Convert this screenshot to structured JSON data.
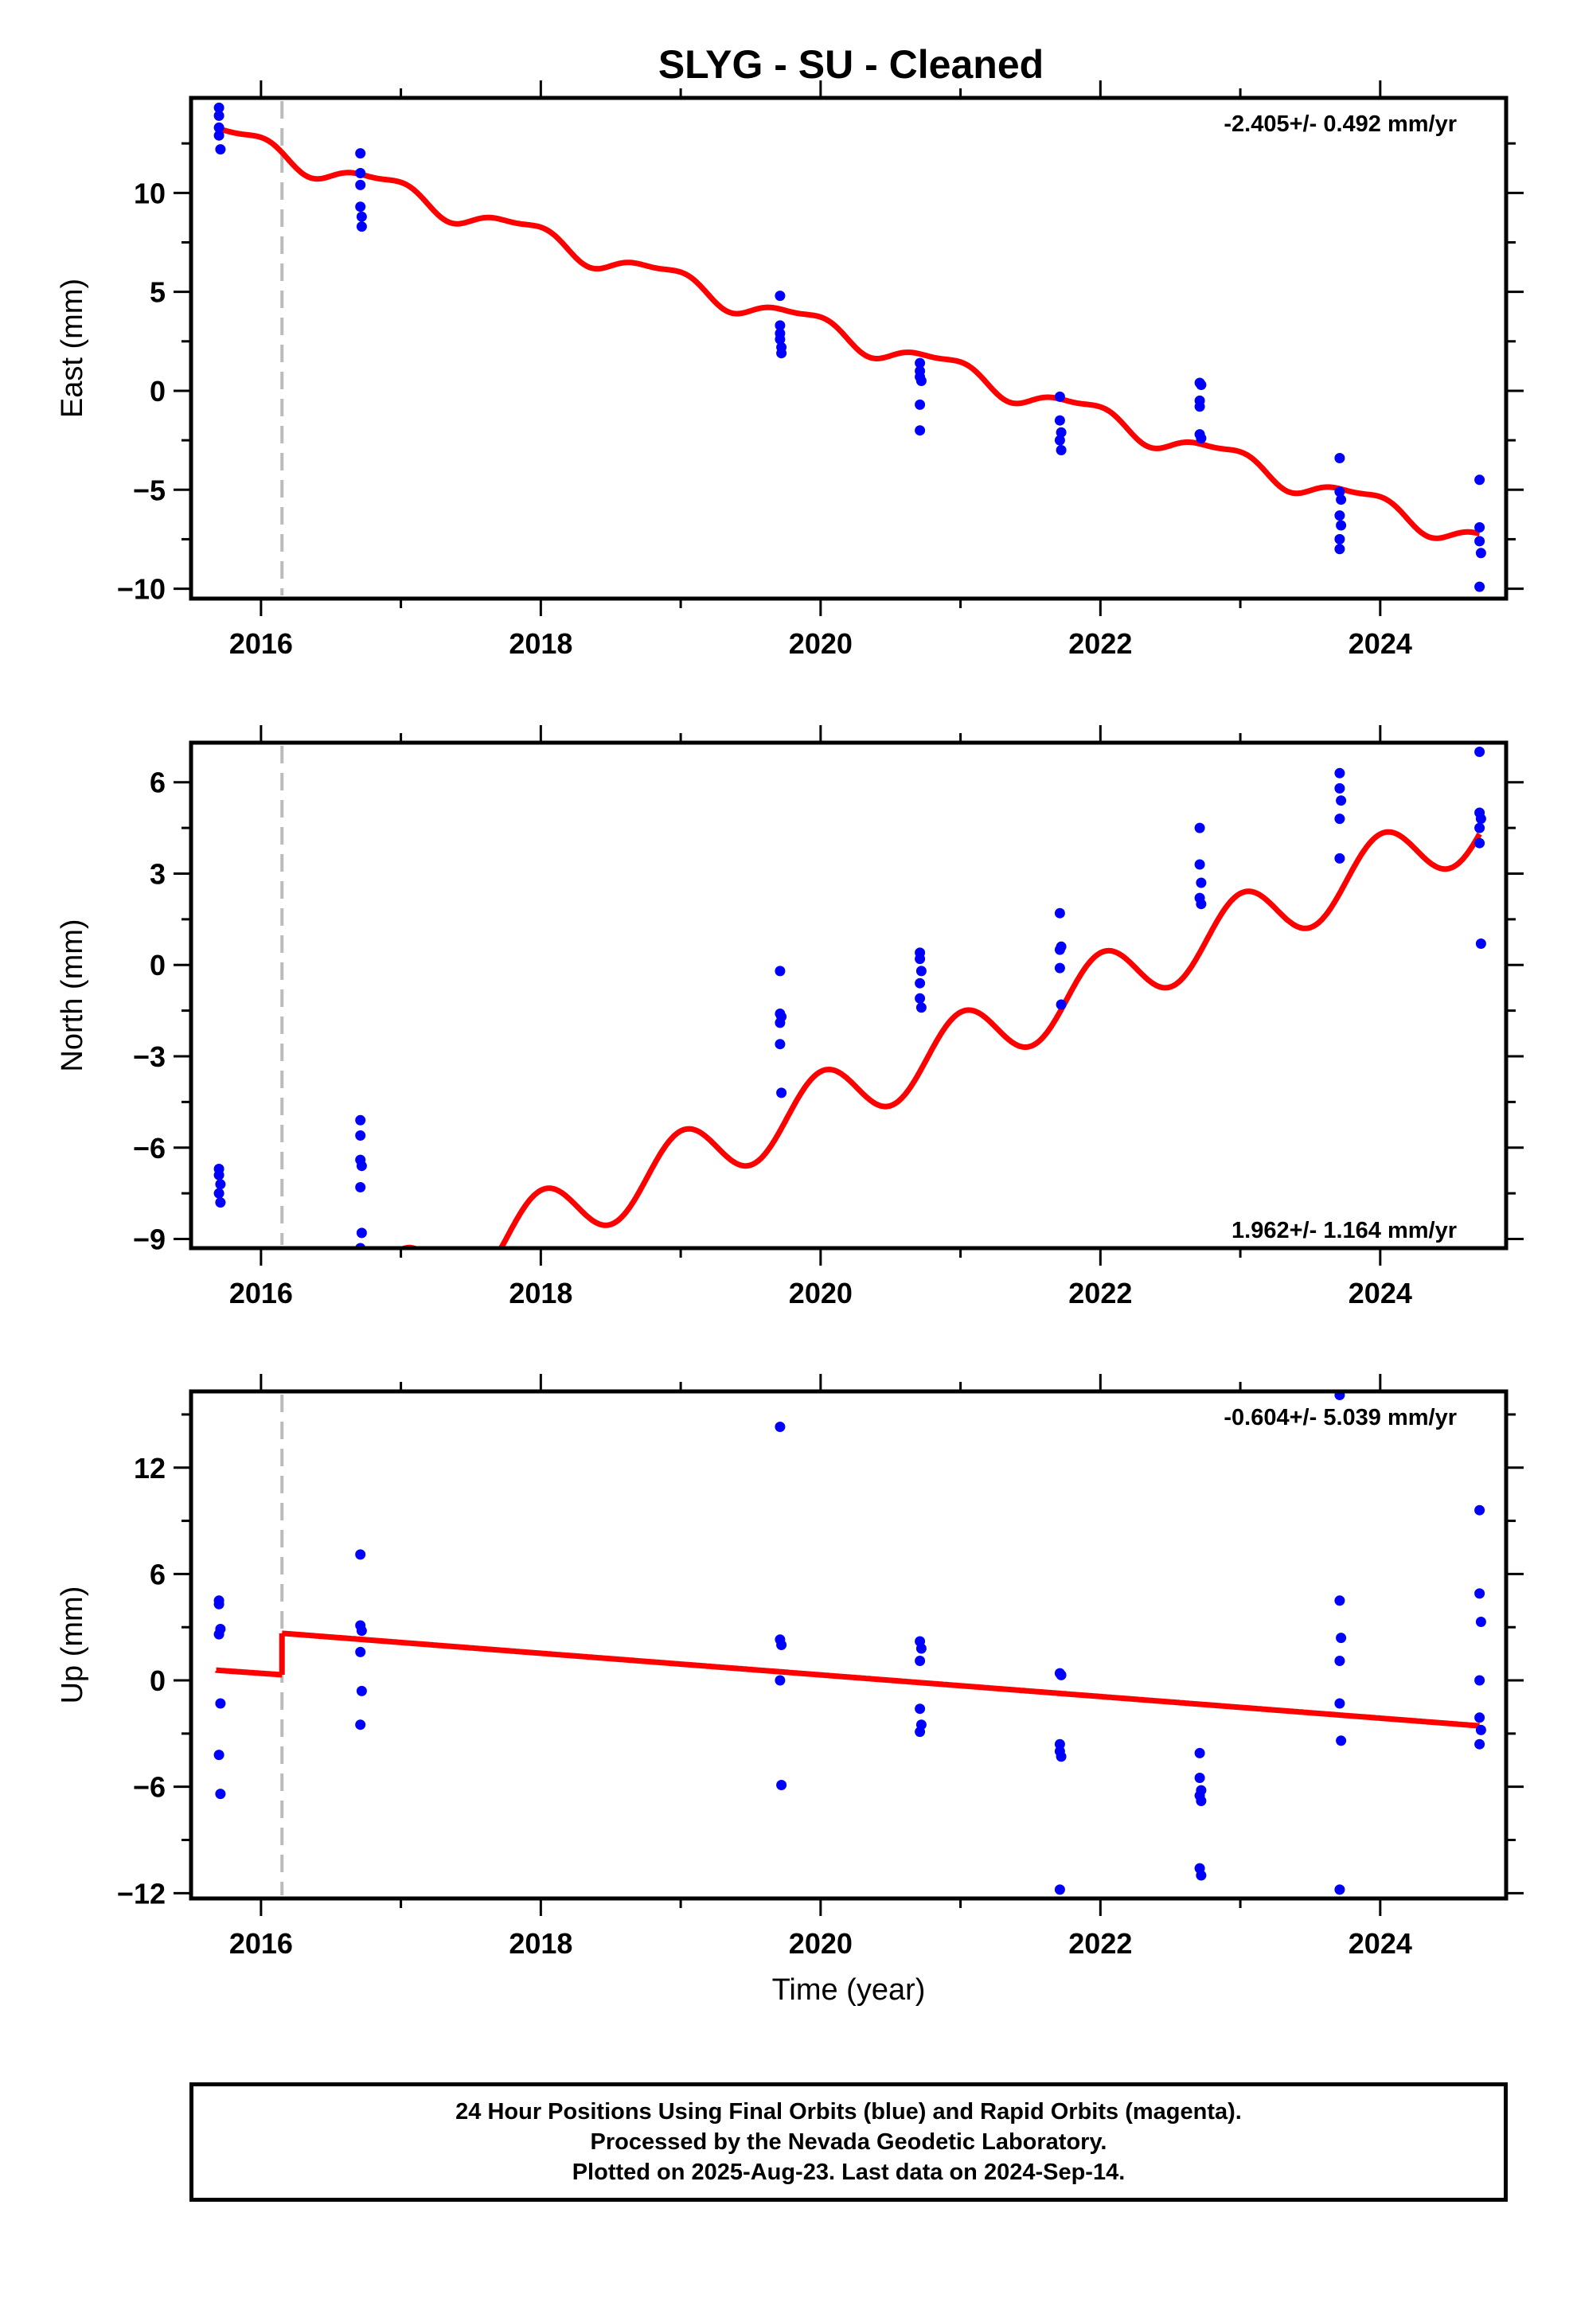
{
  "title": "SLYG  - SU - Cleaned",
  "colors": {
    "final_orbits": "#0000ff",
    "model": "#ff0000",
    "equipment_change_line": "#bbbbbb",
    "frame": "#000000"
  },
  "chart_data": [
    {
      "type": "scatter",
      "component": "east",
      "ylabel": "East (mm)",
      "xlabel": "",
      "xlim": [
        2015.5,
        2024.9
      ],
      "ylim": [
        -10.5,
        14.8
      ],
      "xticks": [
        2016,
        2018,
        2020,
        2022,
        2024
      ],
      "xtick_labels": [
        "2016",
        "2018",
        "2020",
        "2022",
        "2024"
      ],
      "yticks": [
        -10,
        -5,
        0,
        5,
        10
      ],
      "ytick_labels": [
        "−10",
        "−5",
        "0",
        "5",
        "10"
      ],
      "rate_text": "-2.405+/- 0.492 mm/yr",
      "rate_position": "top-right",
      "equipment_change_epoch": 2016.15,
      "model": {
        "segments": [
          {
            "x0": 2015.68,
            "x1": 2024.71,
            "intercept": 12.3,
            "rate": -2.27,
            "annual_amplitude": 0.55,
            "annual_phase": 2.3,
            "semiannual_amplitude": 0.2,
            "semiannual_phase": 0.5
          }
        ]
      },
      "points": [
        [
          2015.7,
          14.3
        ],
        [
          2015.7,
          13.9
        ],
        [
          2015.7,
          13.3
        ],
        [
          2015.7,
          12.9
        ],
        [
          2015.71,
          12.2
        ],
        [
          2016.71,
          12.0
        ],
        [
          2016.71,
          11.0
        ],
        [
          2016.71,
          10.4
        ],
        [
          2016.71,
          9.3
        ],
        [
          2016.72,
          8.8
        ],
        [
          2016.72,
          8.3
        ],
        [
          2019.71,
          4.8
        ],
        [
          2019.71,
          3.3
        ],
        [
          2019.71,
          2.9
        ],
        [
          2019.71,
          2.6
        ],
        [
          2019.72,
          2.2
        ],
        [
          2019.72,
          1.9
        ],
        [
          2020.71,
          1.4
        ],
        [
          2020.71,
          1.0
        ],
        [
          2020.71,
          0.7
        ],
        [
          2020.72,
          0.5
        ],
        [
          2020.71,
          -0.7
        ],
        [
          2020.71,
          -2.0
        ],
        [
          2021.71,
          -0.3
        ],
        [
          2021.71,
          -1.5
        ],
        [
          2021.72,
          -2.1
        ],
        [
          2021.71,
          -2.5
        ],
        [
          2021.72,
          -3.0
        ],
        [
          2022.71,
          0.4
        ],
        [
          2022.72,
          0.3
        ],
        [
          2022.71,
          -0.5
        ],
        [
          2022.71,
          -0.8
        ],
        [
          2022.71,
          -2.2
        ],
        [
          2022.72,
          -2.4
        ],
        [
          2023.71,
          -3.4
        ],
        [
          2023.71,
          -5.1
        ],
        [
          2023.72,
          -5.5
        ],
        [
          2023.71,
          -6.3
        ],
        [
          2023.72,
          -6.8
        ],
        [
          2023.71,
          -7.5
        ],
        [
          2023.71,
          -8.0
        ],
        [
          2024.71,
          -4.5
        ],
        [
          2024.71,
          -6.9
        ],
        [
          2024.71,
          -7.6
        ],
        [
          2024.72,
          -8.2
        ],
        [
          2024.71,
          -9.9
        ]
      ]
    },
    {
      "type": "scatter",
      "component": "north",
      "ylabel": "North (mm)",
      "xlabel": "",
      "xlim": [
        2015.5,
        2024.9
      ],
      "ylim": [
        -9.3,
        7.3
      ],
      "xticks": [
        2016,
        2018,
        2020,
        2022,
        2024
      ],
      "xtick_labels": [
        "2016",
        "2018",
        "2020",
        "2022",
        "2024"
      ],
      "yticks": [
        -9,
        -6,
        -3,
        0,
        3,
        6
      ],
      "ytick_labels": [
        "−9",
        "−6",
        "−3",
        "0",
        "3",
        "6"
      ],
      "rate_text": "1.962+/- 1.164 mm/yr",
      "rate_position": "bottom-right",
      "equipment_change_epoch": 2016.15,
      "model": {
        "segments": [
          {
            "x0": 2015.68,
            "x1": 2016.15,
            "intercept": -11.2,
            "rate": 1.95,
            "annual_amplitude": 1.05,
            "annual_phase": 1.5,
            "semiannual_amplitude": 0.0,
            "semiannual_phase": 0.0
          },
          {
            "x0": 2016.15,
            "x1": 2024.71,
            "intercept": -12.35,
            "rate": 1.95,
            "annual_amplitude": 1.05,
            "annual_phase": 1.5,
            "semiannual_amplitude": 0.0,
            "semiannual_phase": 0.0
          }
        ]
      },
      "points": [
        [
          2015.7,
          -6.7
        ],
        [
          2015.7,
          -6.9
        ],
        [
          2015.71,
          -7.2
        ],
        [
          2015.7,
          -7.5
        ],
        [
          2015.71,
          -7.8
        ],
        [
          2016.71,
          -5.1
        ],
        [
          2016.71,
          -5.6
        ],
        [
          2016.71,
          -6.4
        ],
        [
          2016.72,
          -6.6
        ],
        [
          2016.71,
          -7.3
        ],
        [
          2016.72,
          -8.8
        ],
        [
          2016.71,
          -9.3
        ],
        [
          2019.71,
          -0.2
        ],
        [
          2019.71,
          -1.6
        ],
        [
          2019.72,
          -1.7
        ],
        [
          2019.71,
          -1.9
        ],
        [
          2019.71,
          -2.6
        ],
        [
          2019.72,
          -4.2
        ],
        [
          2020.71,
          0.4
        ],
        [
          2020.71,
          0.2
        ],
        [
          2020.72,
          -0.2
        ],
        [
          2020.71,
          -0.6
        ],
        [
          2020.71,
          -1.1
        ],
        [
          2020.72,
          -1.4
        ],
        [
          2021.71,
          1.7
        ],
        [
          2021.72,
          0.6
        ],
        [
          2021.71,
          0.5
        ],
        [
          2021.71,
          -0.1
        ],
        [
          2021.72,
          -1.3
        ],
        [
          2022.71,
          4.5
        ],
        [
          2022.71,
          3.3
        ],
        [
          2022.72,
          2.7
        ],
        [
          2022.71,
          2.2
        ],
        [
          2022.72,
          2.0
        ],
        [
          2023.71,
          6.3
        ],
        [
          2023.71,
          5.8
        ],
        [
          2023.72,
          5.4
        ],
        [
          2023.71,
          4.8
        ],
        [
          2023.71,
          3.5
        ],
        [
          2024.71,
          7.0
        ],
        [
          2024.71,
          5.0
        ],
        [
          2024.72,
          4.8
        ],
        [
          2024.71,
          4.5
        ],
        [
          2024.71,
          4.0
        ],
        [
          2024.72,
          0.7
        ]
      ]
    },
    {
      "type": "scatter",
      "component": "up",
      "ylabel": "Up (mm)",
      "xlabel": "Time (year)",
      "xlim": [
        2015.5,
        2024.9
      ],
      "ylim": [
        -12.3,
        16.3
      ],
      "xticks": [
        2016,
        2018,
        2020,
        2022,
        2024
      ],
      "xtick_labels": [
        "2016",
        "2018",
        "2020",
        "2022",
        "2024"
      ],
      "yticks": [
        -12,
        -6,
        0,
        6,
        12
      ],
      "ytick_labels": [
        "−12",
        "−6",
        "0",
        "6",
        "12"
      ],
      "rate_text": "-0.604+/- 5.039 mm/yr",
      "rate_position": "top-right",
      "equipment_change_epoch": 2016.15,
      "model": {
        "segments": [
          {
            "x0": 2015.68,
            "x1": 2016.15,
            "intercept": 0.4,
            "rate": -0.55,
            "annual_amplitude": 0.0,
            "annual_phase": 0.0,
            "semiannual_amplitude": 0.0,
            "semiannual_phase": 0.0
          },
          {
            "x0": 2016.15,
            "x1": 2024.71,
            "intercept": 2.75,
            "rate": -0.61,
            "annual_amplitude": 0.0,
            "annual_phase": 0.0,
            "semiannual_amplitude": 0.0,
            "semiannual_phase": 0.0
          }
        ]
      },
      "points": [
        [
          2015.7,
          4.5
        ],
        [
          2015.7,
          4.3
        ],
        [
          2015.71,
          2.9
        ],
        [
          2015.7,
          2.6
        ],
        [
          2015.71,
          -1.3
        ],
        [
          2015.7,
          -4.2
        ],
        [
          2015.71,
          -6.4
        ],
        [
          2016.71,
          7.1
        ],
        [
          2016.71,
          3.1
        ],
        [
          2016.72,
          2.8
        ],
        [
          2016.71,
          1.6
        ],
        [
          2016.72,
          -0.6
        ],
        [
          2016.71,
          -2.5
        ],
        [
          2019.71,
          14.3
        ],
        [
          2019.71,
          2.3
        ],
        [
          2019.72,
          2.0
        ],
        [
          2019.71,
          0.0
        ],
        [
          2019.72,
          -5.9
        ],
        [
          2020.71,
          2.2
        ],
        [
          2020.72,
          1.8
        ],
        [
          2020.71,
          1.1
        ],
        [
          2020.71,
          -1.6
        ],
        [
          2020.72,
          -2.5
        ],
        [
          2020.71,
          -2.9
        ],
        [
          2021.71,
          0.4
        ],
        [
          2021.72,
          0.3
        ],
        [
          2021.71,
          -3.6
        ],
        [
          2021.71,
          -4.0
        ],
        [
          2021.72,
          -4.3
        ],
        [
          2021.71,
          -11.8
        ],
        [
          2022.71,
          -4.1
        ],
        [
          2022.71,
          -5.5
        ],
        [
          2022.72,
          -6.2
        ],
        [
          2022.71,
          -6.5
        ],
        [
          2022.72,
          -6.8
        ],
        [
          2022.71,
          -10.6
        ],
        [
          2022.72,
          -11.0
        ],
        [
          2023.71,
          16.1
        ],
        [
          2023.71,
          4.5
        ],
        [
          2023.72,
          2.4
        ],
        [
          2023.71,
          1.1
        ],
        [
          2023.71,
          -1.3
        ],
        [
          2023.72,
          -3.4
        ],
        [
          2023.71,
          -11.8
        ],
        [
          2024.71,
          9.6
        ],
        [
          2024.71,
          4.9
        ],
        [
          2024.72,
          3.3
        ],
        [
          2024.71,
          0.0
        ],
        [
          2024.71,
          -2.1
        ],
        [
          2024.72,
          -2.8
        ],
        [
          2024.71,
          -3.6
        ]
      ]
    }
  ],
  "footer": {
    "line1": "24 Hour Positions Using Final Orbits (blue) and Rapid Orbits (magenta).",
    "line2": "Processed by the Nevada Geodetic Laboratory.",
    "line3": "Plotted on 2025-Aug-23. Last data on 2024-Sep-14."
  }
}
